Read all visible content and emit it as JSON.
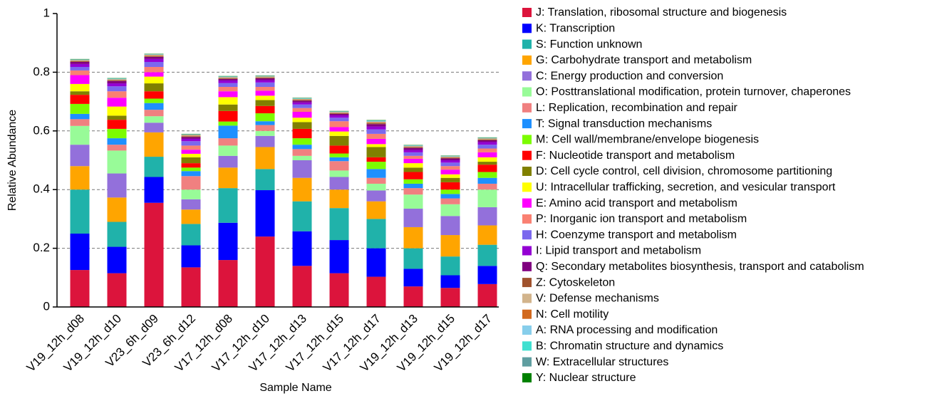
{
  "chart_data": {
    "type": "stacked_bar",
    "xlabel": "Sample Name",
    "ylabel": "Relative Abundance",
    "categories": [
      "V19_12h_d08",
      "V19_12h_d10",
      "V23_6h_d09",
      "V23_6h_d12",
      "V17_12h_d08",
      "V17_12h_d10",
      "V17_12h_d13",
      "V17_12h_d15",
      "V17_12h_d17",
      "V19_12h_d13",
      "V19_12h_d15",
      "V19_12h_d17"
    ],
    "ylim": [
      0,
      1
    ],
    "yticks": [
      0,
      0.2,
      0.4,
      0.6,
      0.8,
      1
    ],
    "grid": true,
    "legend": "right",
    "series": [
      {
        "name": "J: Translation, ribosomal structure and biogenesis",
        "color": "#dc143c",
        "values": [
          0.126,
          0.115,
          0.355,
          0.135,
          0.16,
          0.24,
          0.14,
          0.115,
          0.103,
          0.07,
          0.065,
          0.078
        ]
      },
      {
        "name": "K: Transcription",
        "color": "#0000ff",
        "values": [
          0.124,
          0.09,
          0.088,
          0.075,
          0.127,
          0.158,
          0.118,
          0.113,
          0.097,
          0.06,
          0.043,
          0.062
        ]
      },
      {
        "name": "S: Function unknown",
        "color": "#20b2aa",
        "values": [
          0.15,
          0.085,
          0.069,
          0.073,
          0.118,
          0.072,
          0.102,
          0.109,
          0.1,
          0.07,
          0.064,
          0.072
        ]
      },
      {
        "name": "G: Carbohydrate transport and metabolism",
        "color": "#ffa500",
        "values": [
          0.08,
          0.083,
          0.083,
          0.049,
          0.07,
          0.075,
          0.08,
          0.063,
          0.06,
          0.072,
          0.073,
          0.066
        ]
      },
      {
        "name": "C: Energy production and conversion",
        "color": "#9370db",
        "values": [
          0.073,
          0.082,
          0.033,
          0.035,
          0.04,
          0.038,
          0.06,
          0.043,
          0.037,
          0.063,
          0.065,
          0.062
        ]
      },
      {
        "name": "O: Posttranslational modification, protein turnover, chaperones",
        "color": "#98fb98",
        "values": [
          0.064,
          0.078,
          0.022,
          0.033,
          0.035,
          0.017,
          0.015,
          0.022,
          0.023,
          0.048,
          0.04,
          0.06
        ]
      },
      {
        "name": "L: Replication, recombination and repair",
        "color": "#f08080",
        "values": [
          0.023,
          0.02,
          0.022,
          0.046,
          0.025,
          0.02,
          0.023,
          0.032,
          0.02,
          0.022,
          0.02,
          0.02
        ]
      },
      {
        "name": "T: Signal transduction mechanisms",
        "color": "#1e90ff",
        "values": [
          0.018,
          0.022,
          0.023,
          0.017,
          0.043,
          0.013,
          0.015,
          0.013,
          0.03,
          0.015,
          0.015,
          0.02
        ]
      },
      {
        "name": "M: Cell wall/membrane/envelope biogenesis",
        "color": "#7cfc00",
        "values": [
          0.034,
          0.032,
          0.015,
          0.012,
          0.014,
          0.027,
          0.022,
          0.013,
          0.025,
          0.015,
          0.015,
          0.02
        ]
      },
      {
        "name": "F: Nucleotide transport and metabolism",
        "color": "#ff0000",
        "values": [
          0.031,
          0.031,
          0.025,
          0.015,
          0.036,
          0.025,
          0.032,
          0.027,
          0.015,
          0.025,
          0.025,
          0.025
        ]
      },
      {
        "name": "D: Cell cycle control, cell division, chromosome partitioning",
        "color": "#808000",
        "values": [
          0.012,
          0.014,
          0.027,
          0.02,
          0.022,
          0.02,
          0.023,
          0.033,
          0.035,
          0.015,
          0.015,
          0.01
        ]
      },
      {
        "name": "U: Intracellular trafficking, secretion, and vesicular transport",
        "color": "#ffff00",
        "values": [
          0.025,
          0.031,
          0.023,
          0.012,
          0.025,
          0.015,
          0.015,
          0.015,
          0.01,
          0.015,
          0.012,
          0.015
        ]
      },
      {
        "name": "E: Amino acid transport and metabolism",
        "color": "#ff00ff",
        "values": [
          0.03,
          0.03,
          0.015,
          0.014,
          0.02,
          0.017,
          0.02,
          0.015,
          0.018,
          0.015,
          0.016,
          0.017
        ]
      },
      {
        "name": "P: Inorganic ion transport and metabolism",
        "color": "#fa8072",
        "values": [
          0.016,
          0.022,
          0.018,
          0.014,
          0.015,
          0.013,
          0.013,
          0.02,
          0.017,
          0.01,
          0.012,
          0.013
        ]
      },
      {
        "name": "H: Coenzyme transport and metabolism",
        "color": "#7b68ee",
        "values": [
          0.012,
          0.017,
          0.017,
          0.015,
          0.013,
          0.015,
          0.012,
          0.012,
          0.015,
          0.012,
          0.012,
          0.013
        ]
      },
      {
        "name": "I: Lipid transport and metabolism",
        "color": "#9400d3",
        "values": [
          0.01,
          0.01,
          0.01,
          0.008,
          0.009,
          0.008,
          0.007,
          0.008,
          0.01,
          0.008,
          0.008,
          0.009
        ]
      },
      {
        "name": "Q: Secondary metabolites biosynthesis, transport and catabolism",
        "color": "#800080",
        "values": [
          0.007,
          0.008,
          0.007,
          0.006,
          0.005,
          0.006,
          0.006,
          0.005,
          0.008,
          0.007,
          0.006,
          0.006
        ]
      },
      {
        "name": "Z: Cytoskeleton",
        "color": "#a0522d",
        "values": [
          0.003,
          0.003,
          0.003,
          0.003,
          0.003,
          0.003,
          0.003,
          0.003,
          0.004,
          0.003,
          0.003,
          0.003
        ]
      },
      {
        "name": "V: Defense mechanisms",
        "color": "#d2b48c",
        "values": [
          0.002,
          0.002,
          0.002,
          0.002,
          0.002,
          0.002,
          0.002,
          0.002,
          0.002,
          0.002,
          0.002,
          0.002
        ]
      },
      {
        "name": "N: Cell motility",
        "color": "#d2691e",
        "values": [
          0.001,
          0.001,
          0.002,
          0.002,
          0.001,
          0.001,
          0.001,
          0.001,
          0.002,
          0.001,
          0.001,
          0.001
        ]
      },
      {
        "name": "A: RNA processing and modification",
        "color": "#87ceeb",
        "values": [
          0.001,
          0.001,
          0.001,
          0.001,
          0.001,
          0.001,
          0.001,
          0.001,
          0.002,
          0.001,
          0.001,
          0.001
        ]
      },
      {
        "name": "B: Chromatin structure and dynamics",
        "color": "#40e0d0",
        "values": [
          0.001,
          0.001,
          0.001,
          0.001,
          0.001,
          0.001,
          0.001,
          0.001,
          0.002,
          0.001,
          0.001,
          0.001
        ]
      },
      {
        "name": "W: Extracellular structures",
        "color": "#5f9ea0",
        "values": [
          0.001,
          0.001,
          0.001,
          0.001,
          0.001,
          0.001,
          0.001,
          0.001,
          0.001,
          0.001,
          0.001,
          0.001
        ]
      },
      {
        "name": "Y: Nuclear structure",
        "color": "#008000",
        "values": [
          0.001,
          0.001,
          0.001,
          0.001,
          0.001,
          0.001,
          0.001,
          0.001,
          0.001,
          0.001,
          0.001,
          0.001
        ]
      }
    ]
  }
}
